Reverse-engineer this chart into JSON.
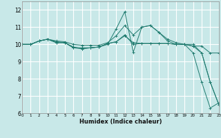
{
  "xlabel": "Humidex (Indice chaleur)",
  "xlim": [
    0,
    23
  ],
  "ylim": [
    6,
    12.5
  ],
  "yticks": [
    6,
    7,
    8,
    9,
    10,
    11,
    12
  ],
  "xticks": [
    0,
    1,
    2,
    3,
    4,
    5,
    6,
    7,
    8,
    9,
    10,
    11,
    12,
    13,
    14,
    15,
    16,
    17,
    18,
    19,
    20,
    21,
    22,
    23
  ],
  "bg_color": "#c8e8e8",
  "plot_bg_color": "#c8e8e8",
  "grid_color": "#ffffff",
  "line_color": "#1e7a6e",
  "lines": [
    {
      "x": [
        0,
        1,
        2,
        3,
        4,
        5,
        6,
        7,
        8,
        9,
        10,
        11,
        12,
        13,
        14,
        15,
        16,
        17,
        18,
        19,
        20,
        21,
        22,
        23
      ],
      "y": [
        10.0,
        10.0,
        10.2,
        10.3,
        10.1,
        10.1,
        9.8,
        9.8,
        9.8,
        9.85,
        10.0,
        10.9,
        11.9,
        9.55,
        11.0,
        11.1,
        10.7,
        10.2,
        10.0,
        10.0,
        9.5,
        7.8,
        6.3,
        6.6
      ]
    },
    {
      "x": [
        0,
        1,
        2,
        3,
        4,
        5,
        6,
        7,
        8,
        9,
        10,
        11,
        12,
        13,
        14,
        15,
        16,
        17,
        18,
        19,
        20,
        21,
        22,
        23
      ],
      "y": [
        10.0,
        10.0,
        10.2,
        10.3,
        10.1,
        10.1,
        9.85,
        9.75,
        9.8,
        9.85,
        10.05,
        10.15,
        10.55,
        10.0,
        10.05,
        10.05,
        10.05,
        10.05,
        10.0,
        10.0,
        9.9,
        9.9,
        9.5,
        9.5
      ]
    },
    {
      "x": [
        0,
        1,
        2,
        3,
        4,
        5,
        6,
        7,
        8,
        9,
        10,
        11,
        12,
        13,
        14,
        15,
        16,
        17,
        18,
        19,
        20,
        21,
        22,
        23
      ],
      "y": [
        10.0,
        10.0,
        10.2,
        10.3,
        10.15,
        10.1,
        9.8,
        9.75,
        9.8,
        9.85,
        10.05,
        10.15,
        10.5,
        10.1,
        10.05,
        10.05,
        10.05,
        10.05,
        10.0,
        10.0,
        9.9,
        9.5,
        7.8,
        6.5
      ]
    },
    {
      "x": [
        0,
        1,
        2,
        3,
        4,
        5,
        6,
        7,
        8,
        9,
        10,
        11,
        12,
        13,
        14,
        15,
        16,
        17,
        18,
        19,
        20,
        21,
        22,
        23
      ],
      "y": [
        10.0,
        10.0,
        10.2,
        10.3,
        10.2,
        10.15,
        10.0,
        9.95,
        9.95,
        9.95,
        10.1,
        10.5,
        11.1,
        10.55,
        11.0,
        11.1,
        10.7,
        10.3,
        10.1,
        10.0,
        10.0,
        9.5,
        7.8,
        6.5
      ]
    }
  ]
}
